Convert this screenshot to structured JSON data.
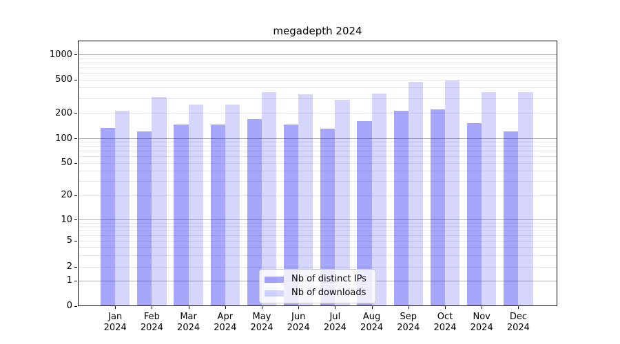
{
  "chart_data": {
    "type": "bar",
    "title": "megadepth 2024",
    "categories": [
      "Jan 2024",
      "Feb 2024",
      "Mar 2024",
      "Apr 2024",
      "May 2024",
      "Jun 2024",
      "Jul 2024",
      "Aug 2024",
      "Sep 2024",
      "Oct 2024",
      "Nov 2024",
      "Dec 2024"
    ],
    "series": [
      {
        "name": "Nb of distinct IPs",
        "color": "rgba(0,0,240,0.35)",
        "values": [
          133,
          120,
          146,
          145,
          168,
          146,
          129,
          159,
          212,
          219,
          151,
          121
        ]
      },
      {
        "name": "Nb of downloads",
        "color": "rgba(0,0,240,0.16)",
        "values": [
          210,
          310,
          250,
          252,
          350,
          332,
          287,
          341,
          468,
          490,
          352,
          354
        ]
      }
    ],
    "yscale": "symlog",
    "yticks": [
      0,
      1,
      2,
      5,
      10,
      20,
      50,
      100,
      200,
      500,
      1000
    ],
    "ylim": [
      0,
      1450
    ],
    "xlabel": "",
    "ylabel": "",
    "grid": "major and minor horizontal",
    "legend_position": "lower center"
  },
  "colors": {
    "background": "#ffffff",
    "spine": "#000000",
    "grid_major": "#aaaaaa",
    "grid_minor": "#e5e5e5",
    "bar_distinct_ips": "rgba(0,0,240,0.35)",
    "bar_downloads": "rgba(0,0,240,0.16)",
    "legend_border": "#cccccc"
  }
}
